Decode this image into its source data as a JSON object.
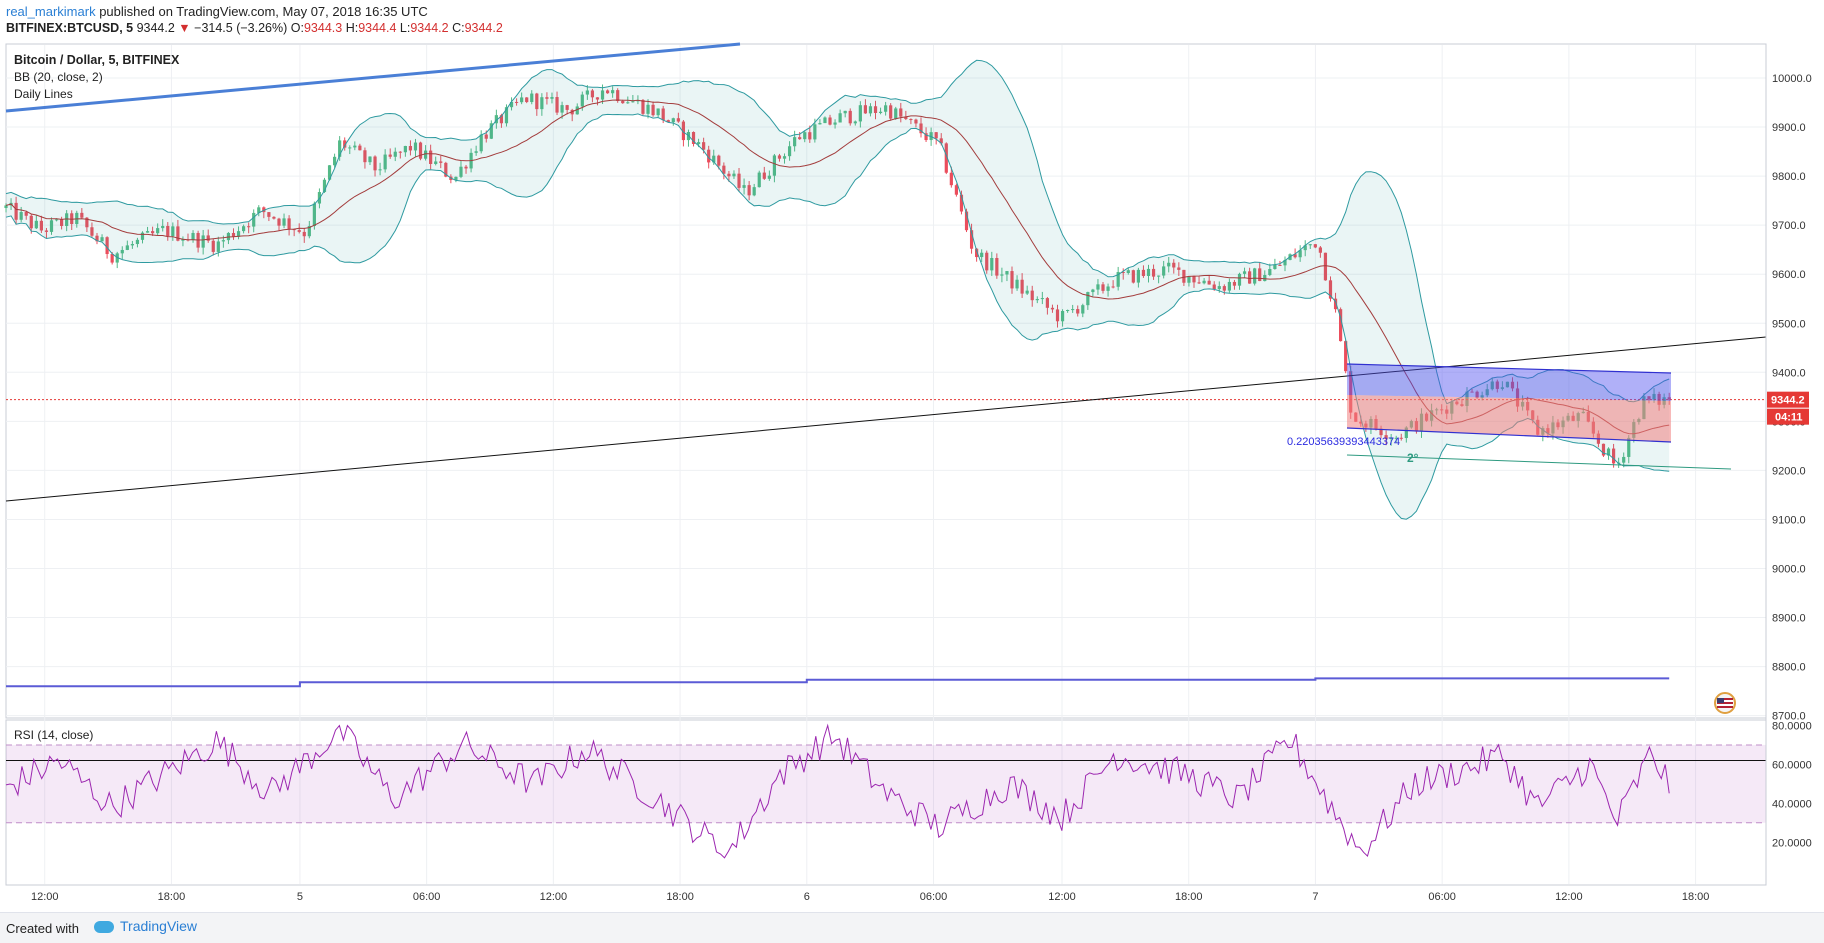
{
  "header": {
    "author": "real_markimark",
    "published_text": "published on TradingView.com, May 07, 2018 16:35 UTC",
    "symbol": "BITFINEX:BTCUSD, 5",
    "last": "9344.2",
    "change": "−314.5 (−3.26%)",
    "o_label": "O:",
    "o_value": "9344.3",
    "h_label": "H:",
    "h_value": "9344.4",
    "l_label": "L:",
    "l_value": "9344.2",
    "c_label": "C:",
    "c_value": "9344.2"
  },
  "legend": {
    "title": "Bitcoin / Dollar, 5, BITFINEX",
    "bb": "BB (20, close, 2)",
    "daily": "Daily Lines",
    "rsi": "RSI (14, close)"
  },
  "price_axis": {
    "ticks": [
      "10000.0",
      "9900.0",
      "9800.0",
      "9700.0",
      "9600.0",
      "9500.0",
      "9400.0",
      "9300.0",
      "9200.0",
      "9100.0",
      "9000.0",
      "8900.0",
      "8800.0",
      "8700.0"
    ],
    "price_label": "9344.2",
    "countdown_label": "04:11"
  },
  "rsi_axis": {
    "ticks": [
      "80.0000",
      "60.0000",
      "40.0000",
      "20.0000"
    ]
  },
  "time_axis": {
    "ticks": [
      "12:00",
      "18:00",
      "5",
      "06:00",
      "12:00",
      "18:00",
      "6",
      "06:00",
      "12:00",
      "18:00",
      "7",
      "06:00",
      "12:00",
      "18:00"
    ]
  },
  "annotations": {
    "ratio": "0.22035639393443374",
    "angle": "2°"
  },
  "footer": {
    "created": "Created with",
    "brand": "TradingView"
  },
  "colors": {
    "up": "#53b987",
    "down": "#eb4d5c",
    "bb_line": "#2e9aa0",
    "bb_basis": "#a33c3c",
    "daily_line": "#5b5bd6",
    "trend_blue": "#4a7fd6",
    "rsi_line": "#9c27b0"
  },
  "chart_data": [
    {
      "type": "candlestick",
      "title": "Bitcoin / Dollar, 5, BITFINEX",
      "interval": "5",
      "y_range": [
        8700,
        10040
      ],
      "price_path": [
        {
          "x": 0,
          "p": 9735
        },
        {
          "x": 0.02,
          "p": 9690
        },
        {
          "x": 0.04,
          "p": 9715
        },
        {
          "x": 0.06,
          "p": 9640
        },
        {
          "x": 0.09,
          "p": 9690
        },
        {
          "x": 0.12,
          "p": 9660
        },
        {
          "x": 0.145,
          "p": 9730
        },
        {
          "x": 0.17,
          "p": 9685
        },
        {
          "x": 0.19,
          "p": 9870
        },
        {
          "x": 0.21,
          "p": 9815
        },
        {
          "x": 0.23,
          "p": 9860
        },
        {
          "x": 0.255,
          "p": 9795
        },
        {
          "x": 0.27,
          "p": 9880
        },
        {
          "x": 0.295,
          "p": 9960
        },
        {
          "x": 0.32,
          "p": 9935
        },
        {
          "x": 0.34,
          "p": 9980
        },
        {
          "x": 0.37,
          "p": 9930
        },
        {
          "x": 0.395,
          "p": 9860
        },
        {
          "x": 0.42,
          "p": 9765
        },
        {
          "x": 0.45,
          "p": 9880
        },
        {
          "x": 0.475,
          "p": 9920
        },
        {
          "x": 0.5,
          "p": 9940
        },
        {
          "x": 0.53,
          "p": 9865
        },
        {
          "x": 0.55,
          "p": 9645
        },
        {
          "x": 0.58,
          "p": 9560
        },
        {
          "x": 0.6,
          "p": 9510
        },
        {
          "x": 0.63,
          "p": 9590
        },
        {
          "x": 0.66,
          "p": 9610
        },
        {
          "x": 0.69,
          "p": 9575
        },
        {
          "x": 0.72,
          "p": 9610
        },
        {
          "x": 0.745,
          "p": 9670
        },
        {
          "x": 0.755,
          "p": 9530
        },
        {
          "x": 0.765,
          "p": 9310
        },
        {
          "x": 0.79,
          "p": 9270
        },
        {
          "x": 0.82,
          "p": 9335
        },
        {
          "x": 0.85,
          "p": 9385
        },
        {
          "x": 0.87,
          "p": 9280
        },
        {
          "x": 0.895,
          "p": 9310
        },
        {
          "x": 0.915,
          "p": 9205
        },
        {
          "x": 0.93,
          "p": 9340
        },
        {
          "x": 0.945,
          "p": 9344.2
        }
      ],
      "current_price": 9344.2
    },
    {
      "type": "line",
      "name": "RSI (14, close)",
      "y_range": [
        10,
        82
      ],
      "bands": [
        30,
        70
      ],
      "rsi_path": [
        {
          "x": 0,
          "v": 48
        },
        {
          "x": 0.03,
          "v": 62
        },
        {
          "x": 0.06,
          "v": 38
        },
        {
          "x": 0.09,
          "v": 55
        },
        {
          "x": 0.12,
          "v": 72
        },
        {
          "x": 0.15,
          "v": 45
        },
        {
          "x": 0.19,
          "v": 78
        },
        {
          "x": 0.22,
          "v": 42
        },
        {
          "x": 0.26,
          "v": 70
        },
        {
          "x": 0.3,
          "v": 50
        },
        {
          "x": 0.33,
          "v": 68
        },
        {
          "x": 0.37,
          "v": 42
        },
        {
          "x": 0.39,
          "v": 28
        },
        {
          "x": 0.41,
          "v": 14
        },
        {
          "x": 0.44,
          "v": 55
        },
        {
          "x": 0.47,
          "v": 75
        },
        {
          "x": 0.5,
          "v": 45
        },
        {
          "x": 0.53,
          "v": 28
        },
        {
          "x": 0.57,
          "v": 50
        },
        {
          "x": 0.6,
          "v": 33
        },
        {
          "x": 0.63,
          "v": 65
        },
        {
          "x": 0.67,
          "v": 55
        },
        {
          "x": 0.7,
          "v": 42
        },
        {
          "x": 0.73,
          "v": 73
        },
        {
          "x": 0.755,
          "v": 35
        },
        {
          "x": 0.77,
          "v": 15
        },
        {
          "x": 0.8,
          "v": 50
        },
        {
          "x": 0.83,
          "v": 58
        },
        {
          "x": 0.85,
          "v": 65
        },
        {
          "x": 0.87,
          "v": 38
        },
        {
          "x": 0.9,
          "v": 60
        },
        {
          "x": 0.915,
          "v": 30
        },
        {
          "x": 0.935,
          "v": 66
        },
        {
          "x": 0.945,
          "v": 50
        }
      ]
    }
  ]
}
